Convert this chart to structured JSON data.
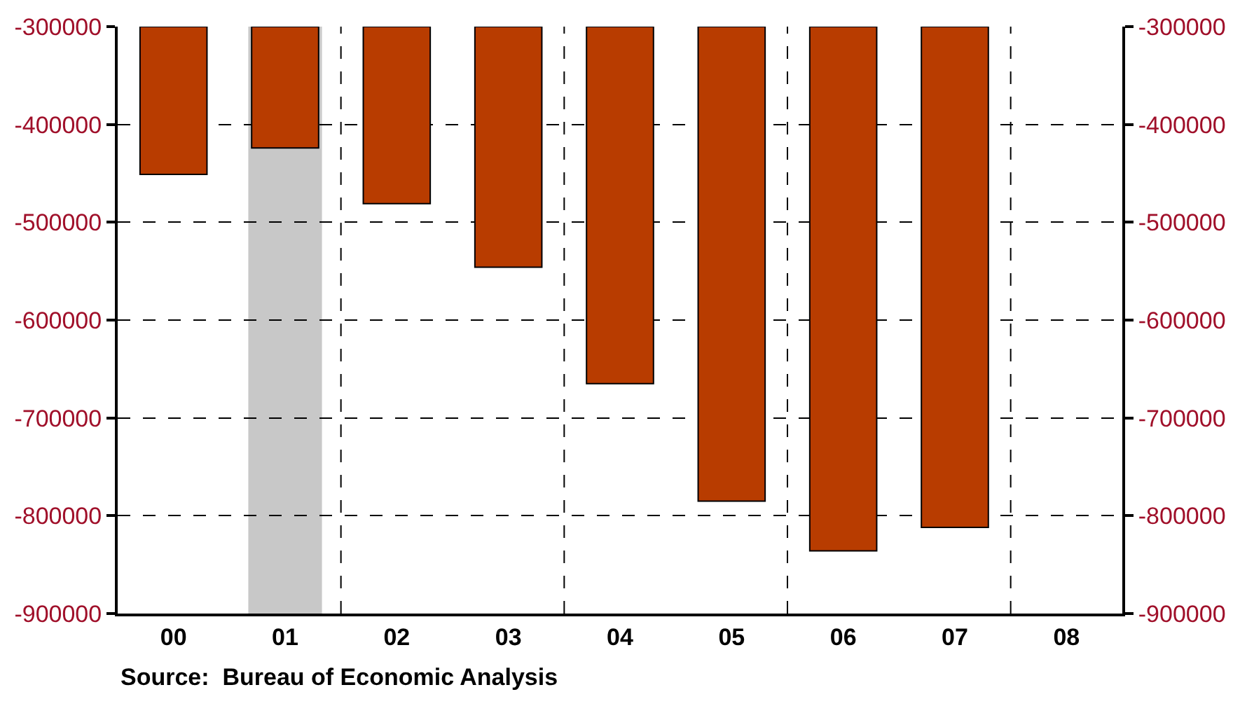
{
  "chart_data": {
    "type": "bar",
    "categories": [
      "00",
      "01",
      "02",
      "03",
      "04",
      "05",
      "06",
      "07",
      "08"
    ],
    "series": [
      {
        "color": "#b83c00",
        "values": [
          -451000,
          -424000,
          -481000,
          -546000,
          -665000,
          -785000,
          -836000,
          -812000,
          null
        ]
      }
    ],
    "ylim": [
      -900000,
      -300000
    ],
    "yticks": [
      -900000,
      -800000,
      -700000,
      -600000,
      -500000,
      -400000,
      -300000
    ],
    "y2lim": [
      -900000,
      -300000
    ],
    "y2ticks": [
      -900000,
      -800000,
      -700000,
      -600000,
      -500000,
      -400000,
      -300000
    ],
    "bands": [
      {
        "axis": "x",
        "from": "01",
        "to": "01",
        "color": "#c8c8c8"
      }
    ],
    "grid": true,
    "legend": false,
    "annotations": [
      "Source:  Bureau of Economic Analysis"
    ]
  }
}
